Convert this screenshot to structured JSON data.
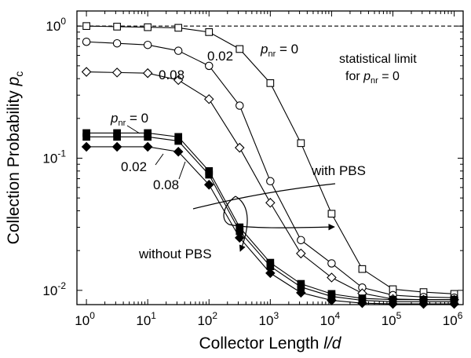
{
  "chart_data": {
    "type": "line",
    "xlabel": "Collector Length l/d",
    "xlabel_main": "Collector Length ",
    "xlabel_var": "l/d",
    "ylabel_main": "Collection Probability ",
    "ylabel_var": "p",
    "ylabel_sub": "c",
    "x_scale": "log",
    "y_scale": "log",
    "xlim": [
      0.7,
      1400000
    ],
    "ylim": [
      0.0078,
      1.3
    ],
    "x_ticks": [
      {
        "value": 1,
        "base": "10",
        "exp": "0"
      },
      {
        "value": 10,
        "base": "10",
        "exp": "1"
      },
      {
        "value": 100,
        "base": "10",
        "exp": "2"
      },
      {
        "value": 1000,
        "base": "10",
        "exp": "3"
      },
      {
        "value": 10000,
        "base": "10",
        "exp": "4"
      },
      {
        "value": 100000,
        "base": "10",
        "exp": "5"
      },
      {
        "value": 1000000,
        "base": "10",
        "exp": "6"
      }
    ],
    "y_ticks": [
      {
        "value": 0.01,
        "base": "10",
        "exp": "-2"
      },
      {
        "value": 0.1,
        "base": "10",
        "exp": "-1"
      },
      {
        "value": 1,
        "base": "10",
        "exp": "0"
      }
    ],
    "grid": false,
    "x": [
      1,
      3.16,
      10,
      31.6,
      100,
      316,
      1000,
      3160,
      10000,
      31600,
      100000,
      316000,
      1000000
    ],
    "reference_line": {
      "y": 1.0,
      "style": "dashed"
    },
    "series": [
      {
        "marker": "open-square",
        "values": [
          1.0,
          0.99,
          0.98,
          0.97,
          0.9,
          0.67,
          0.37,
          0.13,
          0.038,
          0.0145,
          0.0102,
          0.0097,
          0.0094
        ]
      },
      {
        "marker": "open-circle",
        "values": [
          0.76,
          0.74,
          0.72,
          0.65,
          0.5,
          0.25,
          0.067,
          0.024,
          0.016,
          0.0105,
          0.0092,
          0.0089,
          0.0088
        ]
      },
      {
        "marker": "open-diamond",
        "values": [
          0.45,
          0.445,
          0.44,
          0.39,
          0.28,
          0.12,
          0.046,
          0.019,
          0.0125,
          0.0095,
          0.0086,
          0.0085,
          0.0085
        ]
      },
      {
        "marker": "filled-square",
        "values": [
          0.155,
          0.155,
          0.155,
          0.145,
          0.08,
          0.03,
          0.0162,
          0.0112,
          0.0094,
          0.0087,
          0.0085,
          0.0085,
          0.0085
        ]
      },
      {
        "marker": "filled-square",
        "values": [
          0.145,
          0.145,
          0.145,
          0.135,
          0.075,
          0.028,
          0.0152,
          0.0106,
          0.009,
          0.0084,
          0.0082,
          0.0082,
          0.0082
        ]
      },
      {
        "marker": "filled-diamond",
        "values": [
          0.122,
          0.122,
          0.122,
          0.112,
          0.063,
          0.025,
          0.0135,
          0.0096,
          0.0084,
          0.008,
          0.0079,
          0.0079,
          0.0079
        ]
      }
    ],
    "annotations": [
      {
        "id": "stat1",
        "text": "statistical limit"
      },
      {
        "id": "stat2_pre",
        "text": "for "
      },
      {
        "id": "stat2_var",
        "text": "p"
      },
      {
        "id": "stat2_sub",
        "text": "nr"
      },
      {
        "id": "stat2_post",
        "text": " = 0"
      },
      {
        "id": "open_p0_var",
        "text": "p"
      },
      {
        "id": "open_p0_sub",
        "text": "nr"
      },
      {
        "id": "open_p0_post",
        "text": " = 0"
      },
      {
        "id": "open_002",
        "text": "0.02"
      },
      {
        "id": "open_008",
        "text": "0.08"
      },
      {
        "id": "filled_p0_var",
        "text": "p"
      },
      {
        "id": "filled_p0_sub",
        "text": "nr"
      },
      {
        "id": "filled_p0_post",
        "text": " = 0"
      },
      {
        "id": "filled_002",
        "text": "0.02"
      },
      {
        "id": "filled_008",
        "text": "0.08"
      },
      {
        "id": "with_pbs",
        "text": "with PBS"
      },
      {
        "id": "without_pbs",
        "text": "without PBS"
      }
    ]
  }
}
